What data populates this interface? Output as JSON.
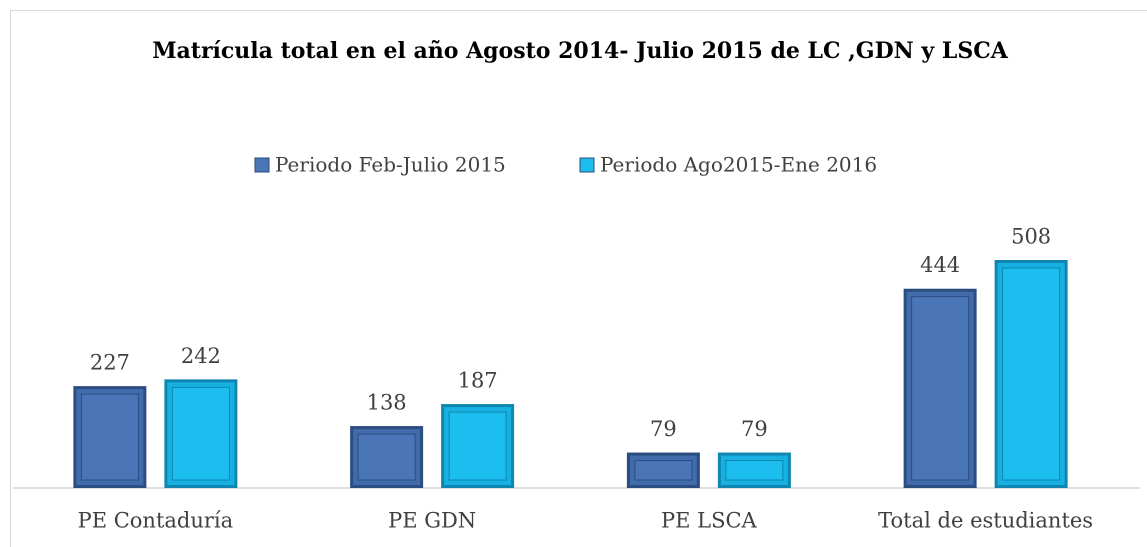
{
  "chart_data": {
    "type": "bar",
    "title": "Matrícula total en el año Agosto 2014- Julio 2015 de LC ,GDN y LSCA",
    "categories": [
      "PE Contaduría",
      "PE GDN",
      "PE LSCA",
      "Total de estudiantes"
    ],
    "series": [
      {
        "name": "Periodo Feb-Julio 2015",
        "color": "#4a76b8",
        "values": [
          227,
          138,
          79,
          444
        ]
      },
      {
        "name": "Periodo Ago2015-Ene 2016",
        "color": "#1cbef0",
        "values": [
          242,
          187,
          79,
          508
        ]
      }
    ],
    "legend": "top"
  }
}
